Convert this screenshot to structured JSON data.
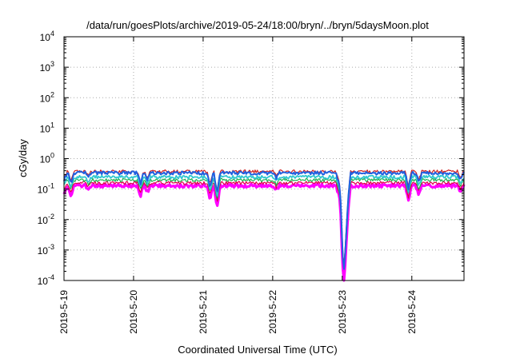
{
  "chart_data": {
    "type": "line",
    "title": "/data/run/goesPlots/archive/2019-05-24/18:00/bryn/../bryn/5daysMoon.plot",
    "xlabel": "Coordinated Universal Time (UTC)",
    "ylabel": "cGy/day",
    "y_scale": "log",
    "ylim": [
      0.0001,
      10000
    ],
    "y_ticks": [
      {
        "base": "10",
        "exp": "-4",
        "value": 0.0001
      },
      {
        "base": "10",
        "exp": "-3",
        "value": 0.001
      },
      {
        "base": "10",
        "exp": "-2",
        "value": 0.01
      },
      {
        "base": "10",
        "exp": "-1",
        "value": 0.1
      },
      {
        "base": "10",
        "exp": "0",
        "value": 1
      },
      {
        "base": "10",
        "exp": "1",
        "value": 10
      },
      {
        "base": "10",
        "exp": "2",
        "value": 100
      },
      {
        "base": "10",
        "exp": "3",
        "value": 1000
      },
      {
        "base": "10",
        "exp": "4",
        "value": 10000
      }
    ],
    "x_range": [
      "2019-05-19 00:00",
      "2019-05-24 18:00"
    ],
    "x_ticks": [
      {
        "label": "2019-5-19",
        "date": "2019-05-19"
      },
      {
        "label": "2019-5-20",
        "date": "2019-05-20"
      },
      {
        "label": "2019-5-21",
        "date": "2019-05-21"
      },
      {
        "label": "2019-5-22",
        "date": "2019-05-22"
      },
      {
        "label": "2019-5-23",
        "date": "2019-05-23"
      },
      {
        "label": "2019-5-24",
        "date": "2019-05-24"
      }
    ],
    "grid": true,
    "series": [
      {
        "color": "#ff00ff",
        "width": 3.2,
        "levels": [
          [
            0.0,
            0.13
          ],
          [
            1.0,
            0.13
          ],
          [
            2.0,
            0.13
          ],
          [
            3.0,
            0.13
          ],
          [
            4.0,
            0.13
          ],
          [
            5.0,
            0.13
          ],
          [
            5.75,
            0.13
          ]
        ]
      },
      {
        "color": "#e0004a",
        "width": 1.2,
        "levels": [
          [
            0.0,
            0.16
          ],
          [
            1.0,
            0.16
          ],
          [
            2.0,
            0.16
          ],
          [
            3.0,
            0.16
          ],
          [
            4.0,
            0.16
          ],
          [
            5.0,
            0.16
          ],
          [
            5.75,
            0.16
          ]
        ]
      },
      {
        "color": "#20b050",
        "width": 1.2,
        "levels": [
          [
            0.0,
            0.2
          ],
          [
            1.0,
            0.2
          ],
          [
            2.0,
            0.2
          ],
          [
            3.0,
            0.2
          ],
          [
            4.0,
            0.2
          ],
          [
            5.0,
            0.2
          ],
          [
            5.75,
            0.2
          ]
        ]
      },
      {
        "color": "#30c8d0",
        "width": 1.8,
        "levels": [
          [
            0.0,
            0.25
          ],
          [
            1.0,
            0.25
          ],
          [
            2.0,
            0.25
          ],
          [
            3.0,
            0.25
          ],
          [
            4.0,
            0.25
          ],
          [
            5.0,
            0.25
          ],
          [
            5.75,
            0.25
          ]
        ]
      },
      {
        "color": "#d02020",
        "width": 1.2,
        "levels": [
          [
            0.0,
            0.38
          ],
          [
            1.0,
            0.38
          ],
          [
            2.0,
            0.38
          ],
          [
            3.0,
            0.38
          ],
          [
            4.0,
            0.38
          ],
          [
            5.0,
            0.38
          ],
          [
            5.75,
            0.38
          ]
        ]
      },
      {
        "color": "#2060e0",
        "width": 2.0,
        "levels": [
          [
            0.0,
            0.34
          ],
          [
            1.0,
            0.34
          ],
          [
            2.0,
            0.34
          ],
          [
            3.0,
            0.34
          ],
          [
            4.0,
            0.34
          ],
          [
            5.0,
            0.34
          ],
          [
            5.75,
            0.34
          ]
        ]
      }
    ],
    "dips": [
      {
        "day": 0.0,
        "factor": 0.6
      },
      {
        "day": 0.1,
        "factor": 0.45
      },
      {
        "day": 0.35,
        "factor": 0.7
      },
      {
        "day": 1.1,
        "factor": 0.45
      },
      {
        "day": 1.2,
        "factor": 0.6
      },
      {
        "day": 2.1,
        "factor": 0.35
      },
      {
        "day": 2.2,
        "factor": 0.2
      },
      {
        "day": 3.05,
        "factor": 0.7
      },
      {
        "day": 3.95,
        "factor": 0.5
      },
      {
        "day": 4.0,
        "factor": 0.02
      },
      {
        "day": 4.03,
        "factor": 0.002
      },
      {
        "day": 4.07,
        "factor": 0.05
      },
      {
        "day": 4.95,
        "factor": 0.3
      },
      {
        "day": 5.1,
        "factor": 0.5
      },
      {
        "day": 5.7,
        "factor": 0.6
      }
    ]
  }
}
